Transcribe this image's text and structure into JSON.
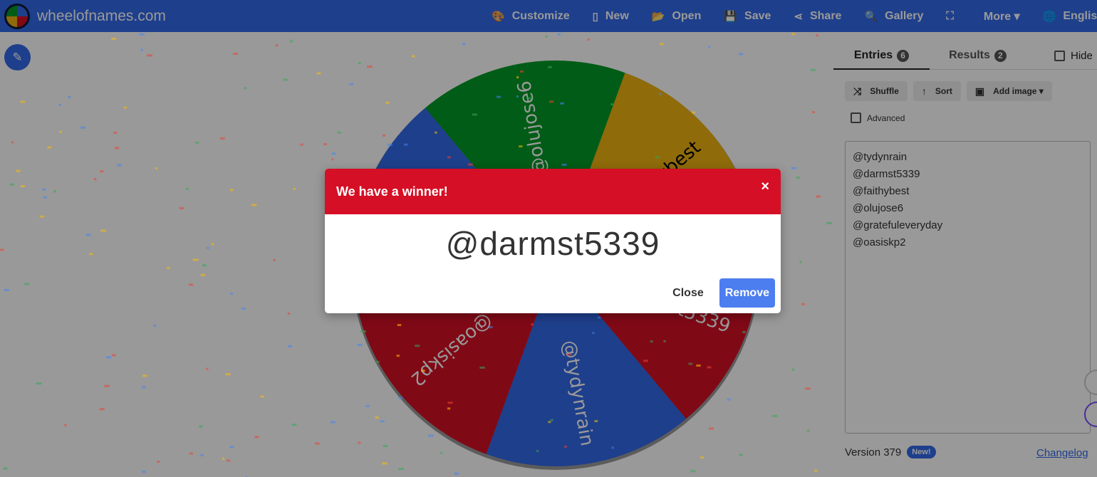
{
  "header": {
    "site": "wheelofnames.com",
    "nav": [
      {
        "icon": "palette-icon",
        "glyph": "🎨",
        "label": "Customize"
      },
      {
        "icon": "file-icon",
        "glyph": "▯",
        "label": "New"
      },
      {
        "icon": "folder-open-icon",
        "glyph": "📂",
        "label": "Open"
      },
      {
        "icon": "save-icon",
        "glyph": "💾",
        "label": "Save"
      },
      {
        "icon": "share-icon",
        "glyph": "⋖",
        "label": "Share"
      },
      {
        "icon": "search-icon",
        "glyph": "🔍",
        "label": "Gallery"
      },
      {
        "icon": "fullscreen-icon",
        "glyph": "⛶",
        "label": ""
      },
      {
        "icon": "chevron-down-icon",
        "glyph": "",
        "label": "More ▾"
      },
      {
        "icon": "globe-icon",
        "glyph": "🌐",
        "label": "English"
      }
    ]
  },
  "wheel": {
    "segments": [
      {
        "label": "@olujose6",
        "color": "#009925"
      },
      {
        "label": "@faithybest",
        "color": "#eeb211"
      },
      {
        "label": "@darmst5339",
        "color": "#d50f25"
      },
      {
        "label": "@tydynrain",
        "color": "#3369e8"
      },
      {
        "label": "@oasiskp2",
        "color": "#d50f25"
      },
      {
        "label": "@gratefuleveryday",
        "color": "#3369e8"
      }
    ]
  },
  "panel": {
    "tabs": [
      {
        "label": "Entries",
        "count": "6"
      },
      {
        "label": "Results",
        "count": "2"
      }
    ],
    "hide_label": "Hide",
    "tools": {
      "shuffle": "Shuffle",
      "sort": "Sort",
      "add_image": "Add image ▾"
    },
    "advanced_label": "Advanced",
    "entries": [
      "@tydynrain",
      "@darmst5339",
      "@faithybest",
      "@olujose6",
      "@gratefuleveryday",
      "@oasiskp2"
    ],
    "version": "Version 379",
    "new_badge": "New!",
    "changelog": "Changelog"
  },
  "modal": {
    "title": "We have a winner!",
    "close_glyph": "×",
    "winner": "@darmst5339",
    "close_label": "Close",
    "remove_label": "Remove"
  },
  "colors": {
    "brand": "#3369e8",
    "winner_header": "#d50f25"
  }
}
